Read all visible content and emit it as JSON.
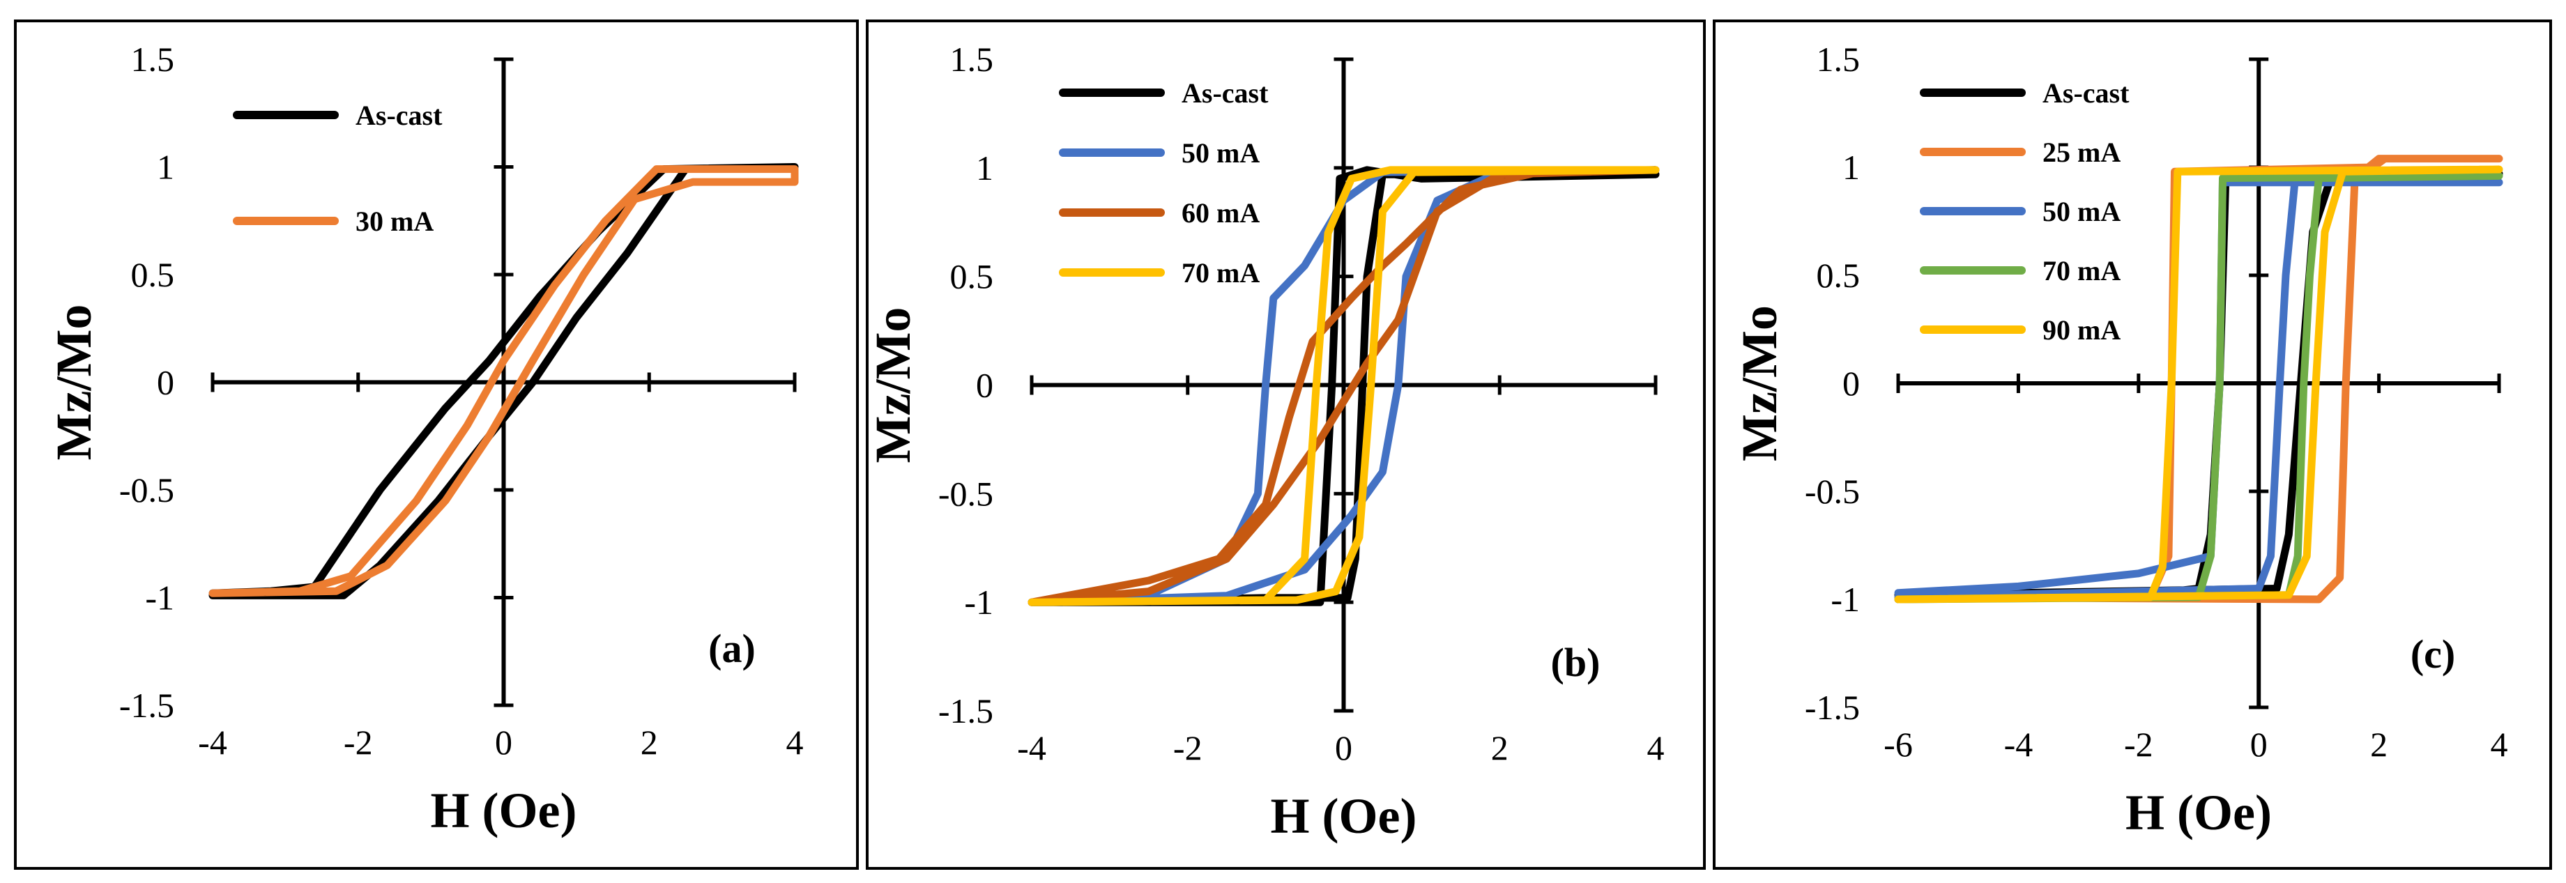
{
  "chart_data": [
    {
      "type": "line",
      "panel_label": "(a)",
      "xlabel": "H (Oe)",
      "ylabel": "Mz/Mo",
      "xlim": [
        -4,
        4
      ],
      "ylim": [
        -1.5,
        1.5
      ],
      "x_ticks": [
        "-4",
        "-2",
        "0",
        "2",
        "4"
      ],
      "y_ticks": [
        "1.5",
        "1",
        "0.5",
        "0",
        "-0.5",
        "-1",
        "-1.5"
      ],
      "legend_position": "top-left",
      "series": [
        {
          "name": "As-cast",
          "color": "#000000",
          "upper_branch": [
            [
              -4,
              -0.98
            ],
            [
              -3.2,
              -0.97
            ],
            [
              -2.6,
              -0.95
            ],
            [
              -1.7,
              -0.5
            ],
            [
              -0.8,
              -0.12
            ],
            [
              -0.2,
              0.1
            ],
            [
              0.5,
              0.4
            ],
            [
              1.3,
              0.7
            ],
            [
              2.2,
              0.99
            ],
            [
              4,
              1.0
            ]
          ],
          "lower_branch": [
            [
              4,
              1.0
            ],
            [
              2.5,
              0.99
            ],
            [
              1.7,
              0.6
            ],
            [
              1.0,
              0.3
            ],
            [
              0.4,
              0.0
            ],
            [
              -0.2,
              -0.25
            ],
            [
              -0.9,
              -0.55
            ],
            [
              -1.7,
              -0.85
            ],
            [
              -2.2,
              -0.99
            ],
            [
              -4,
              -0.99
            ]
          ]
        },
        {
          "name": "30 mA",
          "color": "#ED7D31",
          "upper_branch": [
            [
              -4,
              -0.98
            ],
            [
              -2.8,
              -0.97
            ],
            [
              -2.1,
              -0.9
            ],
            [
              -1.2,
              -0.55
            ],
            [
              -0.5,
              -0.2
            ],
            [
              0.0,
              0.1
            ],
            [
              0.7,
              0.45
            ],
            [
              1.4,
              0.75
            ],
            [
              2.1,
              0.99
            ],
            [
              4,
              0.99
            ]
          ],
          "lower_branch": [
            [
              4,
              0.93
            ],
            [
              2.6,
              0.93
            ],
            [
              1.8,
              0.85
            ],
            [
              1.1,
              0.5
            ],
            [
              0.4,
              0.1
            ],
            [
              -0.2,
              -0.25
            ],
            [
              -0.8,
              -0.55
            ],
            [
              -1.6,
              -0.85
            ],
            [
              -2.3,
              -0.97
            ],
            [
              -4,
              -0.98
            ]
          ]
        }
      ]
    },
    {
      "type": "line",
      "panel_label": "(b)",
      "xlabel": "H (Oe)",
      "ylabel": "Mz/Mo",
      "xlim": [
        -4,
        4
      ],
      "ylim": [
        -1.5,
        1.5
      ],
      "x_ticks": [
        "-4",
        "-2",
        "0",
        "2",
        "4"
      ],
      "y_ticks": [
        "1.5",
        "1",
        "0.5",
        "0",
        "-0.5",
        "-1",
        "-1.5"
      ],
      "legend_position": "top-left",
      "series": [
        {
          "name": "As-cast",
          "color": "#000000",
          "upper_branch": [
            [
              -4,
              -1.0
            ],
            [
              -0.3,
              -1.0
            ],
            [
              -0.15,
              0.0
            ],
            [
              -0.05,
              0.95
            ],
            [
              0.3,
              0.99
            ],
            [
              1.0,
              0.95
            ],
            [
              4,
              0.97
            ]
          ],
          "lower_branch": [
            [
              4,
              0.97
            ],
            [
              0.5,
              0.97
            ],
            [
              0.3,
              0.5
            ],
            [
              0.15,
              -0.8
            ],
            [
              0.05,
              -0.98
            ],
            [
              -1.0,
              -0.98
            ],
            [
              -4,
              -1.0
            ]
          ]
        },
        {
          "name": "50 mA",
          "color": "#4472C4",
          "upper_branch": [
            [
              -4,
              -1.0
            ],
            [
              -2.4,
              -0.95
            ],
            [
              -1.5,
              -0.8
            ],
            [
              -1.1,
              -0.5
            ],
            [
              -1.0,
              0.0
            ],
            [
              -0.9,
              0.4
            ],
            [
              -0.5,
              0.55
            ],
            [
              0.0,
              0.85
            ],
            [
              0.5,
              0.98
            ],
            [
              4,
              0.99
            ]
          ],
          "lower_branch": [
            [
              4,
              0.99
            ],
            [
              2.0,
              0.98
            ],
            [
              1.2,
              0.85
            ],
            [
              0.8,
              0.5
            ],
            [
              0.7,
              0.0
            ],
            [
              0.5,
              -0.4
            ],
            [
              0.1,
              -0.6
            ],
            [
              -0.5,
              -0.85
            ],
            [
              -1.5,
              -0.97
            ],
            [
              -4,
              -1.0
            ]
          ]
        },
        {
          "name": "60 mA",
          "color": "#C65911",
          "upper_branch": [
            [
              -4,
              -1.0
            ],
            [
              -2.5,
              -0.9
            ],
            [
              -1.6,
              -0.8
            ],
            [
              -1.0,
              -0.55
            ],
            [
              -0.7,
              -0.15
            ],
            [
              -0.4,
              0.2
            ],
            [
              0.1,
              0.4
            ],
            [
              0.5,
              0.55
            ],
            [
              0.8,
              0.65
            ],
            [
              1.5,
              0.9
            ],
            [
              2.5,
              0.98
            ],
            [
              4,
              0.99
            ]
          ],
          "lower_branch": [
            [
              4,
              0.99
            ],
            [
              2.0,
              0.97
            ],
            [
              1.2,
              0.8
            ],
            [
              0.7,
              0.3
            ],
            [
              0.3,
              0.1
            ],
            [
              -0.3,
              -0.25
            ],
            [
              -0.9,
              -0.55
            ],
            [
              -1.5,
              -0.8
            ],
            [
              -2.5,
              -0.95
            ],
            [
              -4,
              -1.0
            ]
          ]
        },
        {
          "name": "70 mA",
          "color": "#FFC000",
          "upper_branch": [
            [
              -4,
              -1.0
            ],
            [
              -1.0,
              -0.99
            ],
            [
              -0.5,
              -0.8
            ],
            [
              -0.35,
              0.0
            ],
            [
              -0.2,
              0.7
            ],
            [
              0.1,
              0.95
            ],
            [
              0.6,
              0.99
            ],
            [
              4,
              0.99
            ]
          ],
          "lower_branch": [
            [
              4,
              0.99
            ],
            [
              0.9,
              0.98
            ],
            [
              0.5,
              0.8
            ],
            [
              0.35,
              0.0
            ],
            [
              0.2,
              -0.7
            ],
            [
              -0.1,
              -0.95
            ],
            [
              -0.6,
              -0.99
            ],
            [
              -4,
              -1.0
            ]
          ]
        }
      ]
    },
    {
      "type": "line",
      "panel_label": "(c)",
      "xlabel": "H (Oe)",
      "ylabel": "Mz/Mo",
      "xlim": [
        -6,
        4
      ],
      "ylim": [
        -1.5,
        1.5
      ],
      "x_ticks": [
        "-6",
        "-4",
        "-2",
        "0",
        "2",
        "4"
      ],
      "y_ticks": [
        "1.5",
        "1",
        "0.5",
        "0",
        "-0.5",
        "-1",
        "-1.5"
      ],
      "legend_position": "top-left",
      "series": [
        {
          "name": "As-cast",
          "color": "#000000",
          "upper_branch": [
            [
              -6,
              -1.0
            ],
            [
              -2.0,
              -0.98
            ],
            [
              -1.0,
              -0.95
            ],
            [
              -0.8,
              -0.7
            ],
            [
              -0.65,
              0.0
            ],
            [
              -0.55,
              0.95
            ],
            [
              4,
              0.97
            ]
          ],
          "lower_branch": [
            [
              4,
              0.97
            ],
            [
              1.2,
              0.95
            ],
            [
              0.9,
              0.7
            ],
            [
              0.7,
              0.0
            ],
            [
              0.5,
              -0.7
            ],
            [
              0.3,
              -0.95
            ],
            [
              -6,
              -0.98
            ]
          ]
        },
        {
          "name": "25 mA",
          "color": "#ED7D31",
          "upper_branch": [
            [
              -6,
              -0.99
            ],
            [
              -1.8,
              -0.99
            ],
            [
              -1.5,
              -0.8
            ],
            [
              -1.45,
              0.0
            ],
            [
              -1.4,
              0.98
            ],
            [
              1.9,
              1.0
            ],
            [
              2.1,
              1.04
            ],
            [
              4,
              1.04
            ]
          ],
          "lower_branch": [
            [
              4,
              1.04
            ],
            [
              2.0,
              1.04
            ],
            [
              1.6,
              0.95
            ],
            [
              1.45,
              0.0
            ],
            [
              1.35,
              -0.9
            ],
            [
              1.0,
              -1.0
            ],
            [
              -6,
              -0.99
            ]
          ]
        },
        {
          "name": "50 mA",
          "color": "#4472C4",
          "upper_branch": [
            [
              -6,
              -0.97
            ],
            [
              -4.0,
              -0.94
            ],
            [
              -2.0,
              -0.88
            ],
            [
              -0.8,
              -0.8
            ],
            [
              -0.65,
              0.0
            ],
            [
              -0.6,
              0.93
            ],
            [
              4,
              0.93
            ]
          ],
          "lower_branch": [
            [
              4,
              0.93
            ],
            [
              0.6,
              0.93
            ],
            [
              0.45,
              0.5
            ],
            [
              0.35,
              0.0
            ],
            [
              0.2,
              -0.8
            ],
            [
              0.0,
              -0.95
            ],
            [
              -6,
              -0.99
            ]
          ]
        },
        {
          "name": "70 mA",
          "color": "#70AD47",
          "upper_branch": [
            [
              -6,
              -1.0
            ],
            [
              -1.0,
              -0.99
            ],
            [
              -0.8,
              -0.8
            ],
            [
              -0.65,
              0.0
            ],
            [
              -0.6,
              0.95
            ],
            [
              4,
              0.96
            ]
          ],
          "lower_branch": [
            [
              4,
              0.96
            ],
            [
              1.0,
              0.95
            ],
            [
              0.85,
              0.5
            ],
            [
              0.75,
              0.0
            ],
            [
              0.65,
              -0.8
            ],
            [
              0.5,
              -0.98
            ],
            [
              -6,
              -1.0
            ]
          ]
        },
        {
          "name": "90 mA",
          "color": "#FFC000",
          "upper_branch": [
            [
              -6,
              -1.0
            ],
            [
              -1.8,
              -0.99
            ],
            [
              -1.6,
              -0.85
            ],
            [
              -1.45,
              0.0
            ],
            [
              -1.35,
              0.98
            ],
            [
              4,
              0.99
            ]
          ],
          "lower_branch": [
            [
              4,
              0.99
            ],
            [
              1.4,
              0.98
            ],
            [
              1.1,
              0.7
            ],
            [
              0.95,
              0.0
            ],
            [
              0.8,
              -0.8
            ],
            [
              0.5,
              -0.98
            ],
            [
              -6,
              -1.0
            ]
          ]
        }
      ]
    }
  ]
}
